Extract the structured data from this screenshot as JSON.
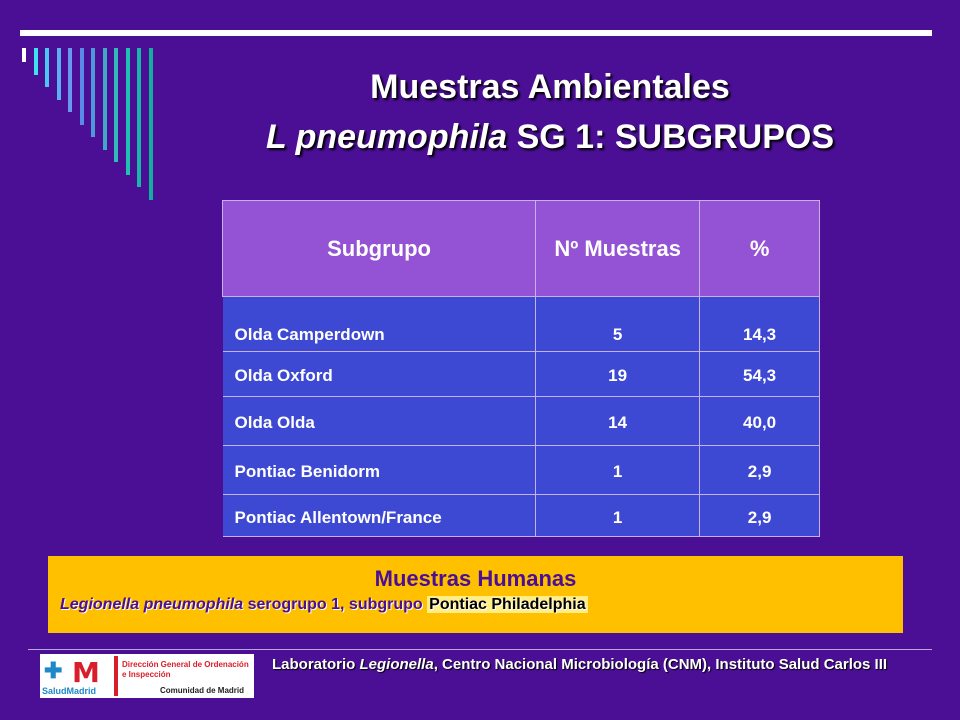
{
  "title": {
    "line1": "Muestras Ambientales",
    "line2_italic": "L pneumophila",
    "line2_rest": " SG 1: SUBGRUPOS"
  },
  "table": {
    "headers": [
      "Subgrupo",
      "Nº Muestras",
      "%"
    ],
    "rows": [
      {
        "subgrupo": "Olda Camperdown",
        "n": "5",
        "pct": "14,3"
      },
      {
        "subgrupo": "Olda Oxford",
        "n": "19",
        "pct": "54,3"
      },
      {
        "subgrupo": "Olda Olda",
        "n": "14",
        "pct": "40,0"
      },
      {
        "subgrupo": "Pontiac Benidorm",
        "n": "1",
        "pct": "2,9"
      },
      {
        "subgrupo": "Pontiac Allentown/France",
        "n": "1",
        "pct": "2,9"
      }
    ]
  },
  "humanas": {
    "title": "Muestras Humanas",
    "sub_italic": "Legionella pneumophila",
    "sub_mid": " serogrupo 1, subgrupo ",
    "sub_highlight": "Pontiac Philadelphia"
  },
  "footer": {
    "lab_pre": "Laboratorio ",
    "lab_italic": "Legionella",
    "lab_post": ", Centro Nacional Microbiología (CNM), Instituto Salud Carlos III"
  },
  "logo": {
    "salud": "SaludMadrid",
    "direccion": "Dirección General de Ordenación e Inspección",
    "comunidad": "Comunidad de Madrid"
  },
  "colors": {
    "background": "#4B0F96",
    "header_cell": "#9452D4",
    "body_cell": "#3D49D2",
    "humanas_box": "#FFC000"
  }
}
